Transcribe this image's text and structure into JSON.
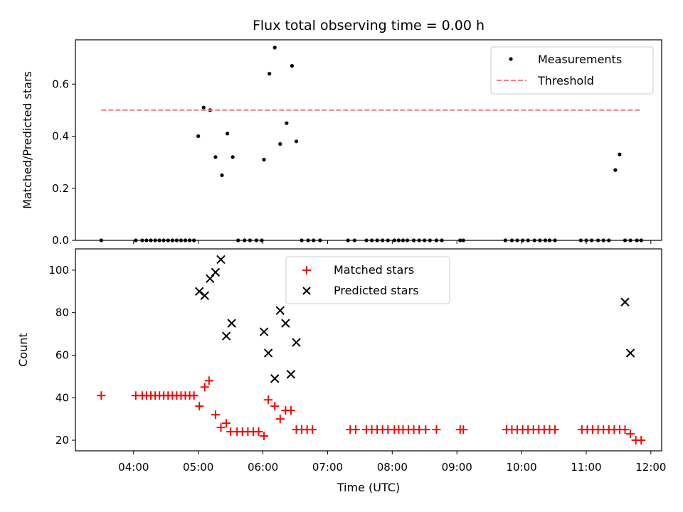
{
  "chart_data": [
    {
      "type": "scatter",
      "title": "Flux total observing time = 0.00 h",
      "xlabel": "",
      "ylabel": "Matched/Predicted stars",
      "x_range": [
        "03:06",
        "12:10"
      ],
      "ylim": [
        0,
        0.77
      ],
      "y_ticks": [
        0.0,
        0.2,
        0.4,
        0.6
      ],
      "grid": false,
      "legend_position": "top-right",
      "legend": [
        "Measurements",
        "Threshold"
      ],
      "series": [
        {
          "name": "Measurements",
          "marker": "dot",
          "color": "#000000",
          "x": [
            "03:30",
            "04:02",
            "04:08",
            "04:12",
            "04:16",
            "04:20",
            "04:24",
            "04:28",
            "04:32",
            "04:36",
            "04:40",
            "04:44",
            "04:48",
            "04:52",
            "04:56",
            "05:00",
            "05:05",
            "05:11",
            "05:16",
            "05:22",
            "05:27",
            "05:32",
            "05:37",
            "05:43",
            "05:48",
            "05:54",
            "05:59",
            "06:01",
            "06:06",
            "06:11",
            "06:16",
            "06:22",
            "06:27",
            "06:31",
            "06:36",
            "06:42",
            "06:47",
            "06:53",
            "07:19",
            "07:25",
            "07:36",
            "07:41",
            "07:46",
            "07:51",
            "07:56",
            "08:02",
            "08:06",
            "08:10",
            "08:14",
            "08:20",
            "08:25",
            "08:30",
            "08:35",
            "08:41",
            "08:46",
            "09:03",
            "09:06",
            "09:45",
            "09:51",
            "09:56",
            "10:01",
            "10:06",
            "10:12",
            "10:17",
            "10:22",
            "10:26",
            "10:31",
            "10:55",
            "11:00",
            "11:05",
            "11:11",
            "11:16",
            "11:21",
            "11:27",
            "11:31",
            "11:36",
            "11:41",
            "11:47",
            "11:51"
          ],
          "y": [
            0,
            0,
            0,
            0,
            0,
            0,
            0,
            0,
            0,
            0,
            0,
            0,
            0,
            0,
            0,
            0.4,
            0.51,
            0.5,
            0.32,
            0.25,
            0.41,
            0.32,
            0,
            0,
            0,
            0,
            0,
            0.31,
            0.64,
            0.74,
            0.37,
            0.45,
            0.67,
            0.38,
            0,
            0,
            0,
            0,
            0,
            0,
            0,
            0,
            0,
            0,
            0,
            0,
            0,
            0,
            0,
            0,
            0,
            0,
            0,
            0,
            0,
            0,
            0,
            0,
            0,
            0,
            0,
            0,
            0,
            0,
            0,
            0,
            0,
            0,
            0,
            0,
            0,
            0,
            0,
            0.27,
            0.33,
            0,
            0,
            0,
            0
          ]
        },
        {
          "name": "Threshold",
          "style": "dashed",
          "color": "#f08080",
          "x": [
            "03:30",
            "11:50"
          ],
          "y": [
            0.5,
            0.5
          ]
        }
      ]
    },
    {
      "type": "scatter",
      "title": "",
      "xlabel": "Time (UTC)",
      "ylabel": "Count",
      "x_range": [
        "03:06",
        "12:10"
      ],
      "x_ticks": [
        "04:00",
        "05:00",
        "06:00",
        "07:00",
        "08:00",
        "09:00",
        "10:00",
        "11:00",
        "12:00"
      ],
      "ylim": [
        15,
        110
      ],
      "y_ticks": [
        20,
        40,
        60,
        80,
        100
      ],
      "grid": false,
      "legend_position": "top-center",
      "legend": [
        "Matched stars",
        "Predicted stars"
      ],
      "series": [
        {
          "name": "Matched stars",
          "marker": "plus",
          "color": "#ff0000",
          "x": [
            "03:30",
            "04:02",
            "04:08",
            "04:12",
            "04:16",
            "04:20",
            "04:24",
            "04:28",
            "04:32",
            "04:36",
            "04:40",
            "04:44",
            "04:48",
            "04:52",
            "04:56",
            "05:01",
            "05:06",
            "05:10",
            "05:16",
            "05:21",
            "05:26",
            "05:30",
            "05:36",
            "05:41",
            "05:46",
            "05:51",
            "05:56",
            "06:01",
            "06:05",
            "06:11",
            "06:16",
            "06:21",
            "06:26",
            "06:31",
            "06:36",
            "06:41",
            "06:46",
            "07:21",
            "07:26",
            "07:36",
            "07:41",
            "07:46",
            "07:51",
            "07:56",
            "08:02",
            "08:06",
            "08:10",
            "08:15",
            "08:20",
            "08:25",
            "08:31",
            "08:41",
            "09:03",
            "09:06",
            "09:46",
            "09:51",
            "09:56",
            "10:01",
            "10:06",
            "10:11",
            "10:16",
            "10:21",
            "10:26",
            "10:31",
            "10:56",
            "11:01",
            "11:06",
            "11:11",
            "11:16",
            "11:21",
            "11:26",
            "11:31",
            "11:36",
            "11:41",
            "11:46",
            "11:51"
          ],
          "y": [
            41,
            41,
            41,
            41,
            41,
            41,
            41,
            41,
            41,
            41,
            41,
            41,
            41,
            41,
            41,
            36,
            45,
            48,
            32,
            26,
            28,
            24,
            24,
            24,
            24,
            24,
            24,
            22,
            39,
            36,
            30,
            34,
            34,
            25,
            25,
            25,
            25,
            25,
            25,
            25,
            25,
            25,
            25,
            25,
            25,
            25,
            25,
            25,
            25,
            25,
            25,
            25,
            25,
            25,
            25,
            25,
            25,
            25,
            25,
            25,
            25,
            25,
            25,
            25,
            25,
            25,
            25,
            25,
            25,
            25,
            25,
            25,
            25,
            23,
            20,
            20
          ]
        },
        {
          "name": "Predicted stars",
          "marker": "x",
          "color": "#000000",
          "x": [
            "05:01",
            "05:06",
            "05:11",
            "05:16",
            "05:21",
            "05:26",
            "05:31",
            "06:01",
            "06:05",
            "06:11",
            "06:16",
            "06:21",
            "06:26",
            "06:31",
            "11:36",
            "11:41"
          ],
          "y": [
            90,
            88,
            96,
            99,
            105,
            69,
            75,
            71,
            61,
            49,
            81,
            75,
            51,
            66,
            85,
            61
          ]
        }
      ]
    }
  ]
}
